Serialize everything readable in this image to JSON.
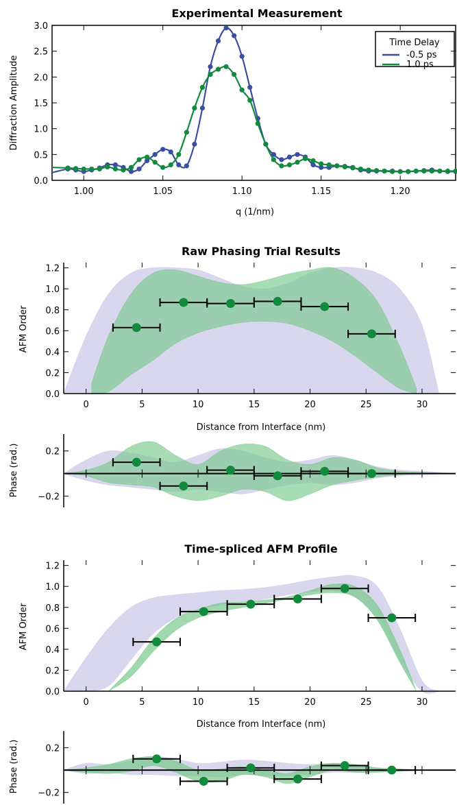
{
  "colors": {
    "blue": "#3b4ea2",
    "green": "#128a3e",
    "green_fill": "#78c98c",
    "green_fill_dark": "#2e8e74",
    "lavender": "#cfcde8",
    "black": "#000000"
  },
  "chart_data": [
    {
      "type": "line",
      "title": "Experimental Measurement",
      "xlabel": "q (1/nm)",
      "ylabel": "Diffraction Amplitude",
      "xlim": [
        0.98,
        1.235
      ],
      "ylim": [
        0,
        3.0
      ],
      "xticks": [
        1.0,
        1.05,
        1.1,
        1.15,
        1.2
      ],
      "xtick_labels": [
        "1.00",
        "1.05",
        "1.10",
        "1.15",
        "1.20"
      ],
      "yticks": [
        0,
        0.5,
        1.0,
        1.5,
        2.0,
        2.5,
        3.0
      ],
      "ytick_labels": [
        "0.0",
        "0.5",
        "1.0",
        "1.5",
        "2.0",
        "2.5",
        "3.0"
      ],
      "legend": {
        "title": "Time Delay",
        "position": "top-right"
      },
      "series": [
        {
          "name": "-0.5 ps",
          "x": [
            0.98,
            0.99,
            0.995,
            1.0,
            1.005,
            1.01,
            1.015,
            1.02,
            1.025,
            1.03,
            1.035,
            1.04,
            1.045,
            1.05,
            1.055,
            1.06,
            1.065,
            1.07,
            1.075,
            1.08,
            1.085,
            1.09,
            1.095,
            1.1,
            1.105,
            1.11,
            1.115,
            1.12,
            1.125,
            1.13,
            1.135,
            1.14,
            1.145,
            1.15,
            1.155,
            1.16,
            1.165,
            1.17,
            1.175,
            1.18,
            1.185,
            1.19,
            1.195,
            1.2,
            1.205,
            1.21,
            1.215,
            1.22,
            1.225,
            1.23,
            1.235
          ],
          "y": [
            0.15,
            0.22,
            0.2,
            0.17,
            0.2,
            0.24,
            0.3,
            0.3,
            0.25,
            0.17,
            0.22,
            0.38,
            0.5,
            0.6,
            0.55,
            0.3,
            0.28,
            0.7,
            1.4,
            2.2,
            2.7,
            2.95,
            2.8,
            2.4,
            1.8,
            1.2,
            0.7,
            0.5,
            0.4,
            0.45,
            0.5,
            0.45,
            0.3,
            0.25,
            0.25,
            0.28,
            0.27,
            0.25,
            0.2,
            0.18,
            0.18,
            0.18,
            0.18,
            0.17,
            0.17,
            0.18,
            0.19,
            0.2,
            0.18,
            0.17,
            0.17
          ]
        },
        {
          "name": "1.0 ps",
          "x": [
            0.98,
            0.99,
            0.995,
            1.0,
            1.005,
            1.01,
            1.015,
            1.02,
            1.025,
            1.03,
            1.035,
            1.04,
            1.045,
            1.05,
            1.055,
            1.06,
            1.065,
            1.07,
            1.075,
            1.08,
            1.085,
            1.09,
            1.095,
            1.1,
            1.105,
            1.11,
            1.115,
            1.12,
            1.125,
            1.13,
            1.135,
            1.14,
            1.145,
            1.15,
            1.155,
            1.16,
            1.165,
            1.17,
            1.175,
            1.18,
            1.185,
            1.19,
            1.195,
            1.2,
            1.205,
            1.21,
            1.215,
            1.22,
            1.225,
            1.23,
            1.235
          ],
          "y": [
            0.25,
            0.24,
            0.23,
            0.22,
            0.22,
            0.22,
            0.26,
            0.22,
            0.2,
            0.25,
            0.4,
            0.45,
            0.35,
            0.25,
            0.3,
            0.5,
            0.93,
            1.4,
            1.8,
            2.05,
            2.15,
            2.2,
            2.05,
            1.75,
            1.55,
            1.1,
            0.7,
            0.4,
            0.28,
            0.3,
            0.35,
            0.42,
            0.38,
            0.32,
            0.3,
            0.28,
            0.26,
            0.24,
            0.22,
            0.2,
            0.19,
            0.18,
            0.17,
            0.17,
            0.17,
            0.18,
            0.18,
            0.18,
            0.18,
            0.18,
            0.18
          ]
        }
      ]
    },
    {
      "type": "scatter",
      "title": "Raw Phasing Trial Results",
      "xlabel": "Distance from Interface (nm)",
      "ylabel": "AFM Order",
      "xlim": [
        -2,
        33
      ],
      "ylim": [
        0,
        1.25
      ],
      "xticks": [
        0,
        5,
        10,
        15,
        20,
        25,
        30
      ],
      "xtick_labels": [
        "0",
        "5",
        "10",
        "15",
        "20",
        "25",
        "30"
      ],
      "yticks": [
        0,
        0.2,
        0.4,
        0.6,
        0.8,
        1.0,
        1.2
      ],
      "ytick_labels": [
        "0.0",
        "0.2",
        "0.4",
        "0.6",
        "0.8",
        "1.0",
        "1.2"
      ],
      "points": [
        {
          "x": 4.5,
          "y": 0.63,
          "xerr": 2.1
        },
        {
          "x": 8.7,
          "y": 0.87,
          "xerr": 2.1
        },
        {
          "x": 12.9,
          "y": 0.86,
          "xerr": 2.1
        },
        {
          "x": 17.1,
          "y": 0.88,
          "xerr": 2.1
        },
        {
          "x": 21.3,
          "y": 0.83,
          "xerr": 2.1
        },
        {
          "x": 25.5,
          "y": 0.57,
          "xerr": 2.1
        }
      ],
      "band_green": {
        "x": [
          0.5,
          2,
          4,
          6,
          8,
          10,
          12,
          14,
          16,
          18,
          20,
          22,
          24,
          26,
          28,
          29.5
        ],
        "upper": [
          0.1,
          0.55,
          0.95,
          1.15,
          1.18,
          1.12,
          1.06,
          1.04,
          1.08,
          1.14,
          1.18,
          1.2,
          1.1,
          0.88,
          0.45,
          0.05
        ],
        "lower": [
          0.0,
          0.02,
          0.18,
          0.32,
          0.48,
          0.58,
          0.64,
          0.68,
          0.69,
          0.67,
          0.6,
          0.5,
          0.36,
          0.2,
          0.05,
          0.0
        ]
      },
      "band_lavender": {
        "x": [
          -2,
          0,
          2,
          4,
          6,
          8,
          10,
          12,
          14,
          16,
          18,
          20,
          22,
          24,
          26,
          28,
          30,
          31.5
        ],
        "upper": [
          0.0,
          0.55,
          0.95,
          1.15,
          1.2,
          1.2,
          1.18,
          1.1,
          1.02,
          1.0,
          1.05,
          1.15,
          1.2,
          1.2,
          1.15,
          1.0,
          0.65,
          0.0
        ],
        "lower": [
          0.0,
          0.0,
          0.0,
          0.0,
          0.0,
          0.0,
          0.0,
          0.0,
          0.0,
          0.0,
          0.0,
          0.0,
          0.0,
          0.0,
          0.0,
          0.0,
          0.0,
          0.0
        ]
      }
    },
    {
      "type": "scatter",
      "title": "",
      "xlabel": "",
      "ylabel": "Phase (rad.)",
      "xlim": [
        -2,
        33
      ],
      "ylim": [
        -0.3,
        0.35
      ],
      "yticks": [
        -0.2,
        0.2
      ],
      "ytick_labels": [
        "−0.2",
        "0.2"
      ],
      "xticks": [
        0,
        5,
        10,
        15,
        20,
        25,
        30
      ],
      "points": [
        {
          "x": 4.5,
          "y": 0.1,
          "xerr": 2.1
        },
        {
          "x": 8.7,
          "y": -0.11,
          "xerr": 2.1
        },
        {
          "x": 12.9,
          "y": 0.03,
          "xerr": 2.1
        },
        {
          "x": 17.1,
          "y": -0.02,
          "xerr": 2.1
        },
        {
          "x": 21.3,
          "y": 0.02,
          "xerr": 2.1
        },
        {
          "x": 25.5,
          "y": 0.0,
          "xerr": 2.1
        }
      ],
      "band_green": {
        "x": [
          -2,
          0,
          2,
          4,
          6,
          8,
          10,
          12,
          14,
          16,
          18,
          20,
          22,
          24,
          26,
          28,
          30,
          33
        ],
        "upper": [
          0.0,
          0.03,
          0.1,
          0.24,
          0.28,
          0.16,
          0.08,
          0.2,
          0.26,
          0.24,
          0.12,
          0.08,
          0.14,
          0.12,
          0.05,
          0.02,
          0.01,
          0.0
        ],
        "lower": [
          0.0,
          -0.02,
          -0.08,
          -0.1,
          -0.12,
          -0.2,
          -0.24,
          -0.2,
          -0.14,
          -0.16,
          -0.24,
          -0.18,
          -0.1,
          -0.06,
          -0.03,
          -0.01,
          0.0,
          0.0
        ]
      },
      "band_lavender": {
        "x": [
          -2,
          0,
          2,
          4,
          6,
          8,
          10,
          12,
          14,
          16,
          18,
          20,
          22,
          24,
          26,
          28,
          30,
          33
        ],
        "upper": [
          0.0,
          0.12,
          0.2,
          0.18,
          0.14,
          0.1,
          0.16,
          0.22,
          0.2,
          0.14,
          0.1,
          0.12,
          0.16,
          0.12,
          0.06,
          0.03,
          0.02,
          0.0
        ],
        "lower": [
          0.0,
          -0.06,
          -0.1,
          -0.12,
          -0.14,
          -0.16,
          -0.14,
          -0.16,
          -0.18,
          -0.14,
          -0.1,
          -0.08,
          -0.1,
          -0.08,
          -0.04,
          -0.02,
          -0.01,
          0.0
        ]
      }
    },
    {
      "type": "scatter",
      "title": "Time-spliced AFM Profile",
      "xlabel": "Distance from Interface (nm)",
      "ylabel": "AFM Order",
      "xlim": [
        -2,
        33
      ],
      "ylim": [
        0,
        1.25
      ],
      "xticks": [
        0,
        5,
        10,
        15,
        20,
        25,
        30
      ],
      "xtick_labels": [
        "0",
        "5",
        "10",
        "15",
        "20",
        "25",
        "30"
      ],
      "yticks": [
        0,
        0.2,
        0.4,
        0.6,
        0.8,
        1.0,
        1.2
      ],
      "ytick_labels": [
        "0.0",
        "0.2",
        "0.4",
        "0.6",
        "0.8",
        "1.0",
        "1.2"
      ],
      "points": [
        {
          "x": 6.3,
          "y": 0.47,
          "xerr": 2.1
        },
        {
          "x": 10.5,
          "y": 0.76,
          "xerr": 2.1
        },
        {
          "x": 14.7,
          "y": 0.83,
          "xerr": 2.1
        },
        {
          "x": 18.9,
          "y": 0.88,
          "xerr": 2.1
        },
        {
          "x": 23.1,
          "y": 0.98,
          "xerr": 2.1
        },
        {
          "x": 27.3,
          "y": 0.7,
          "xerr": 2.1
        }
      ],
      "band_green": {
        "x": [
          2.0,
          4,
          6,
          8,
          10,
          12,
          14,
          16,
          18,
          20,
          22,
          24,
          26,
          28,
          29.5
        ],
        "upper": [
          0.0,
          0.22,
          0.5,
          0.69,
          0.78,
          0.84,
          0.85,
          0.87,
          0.9,
          0.96,
          1.02,
          1.0,
          0.82,
          0.4,
          0.0
        ],
        "lower": [
          0.0,
          0.14,
          0.38,
          0.58,
          0.7,
          0.76,
          0.8,
          0.84,
          0.88,
          0.92,
          0.94,
          0.9,
          0.68,
          0.28,
          0.0
        ]
      },
      "band_lavender": {
        "x": [
          -2,
          0,
          2,
          4,
          6,
          8,
          10,
          12,
          14,
          16,
          18,
          20,
          22,
          24,
          26,
          28,
          30,
          31.5
        ],
        "upper": [
          0.0,
          0.32,
          0.6,
          0.8,
          0.89,
          0.92,
          0.94,
          0.96,
          0.97,
          0.99,
          1.02,
          1.06,
          1.09,
          1.1,
          1.0,
          0.6,
          0.1,
          0.0
        ],
        "lower": [
          0.0,
          0.0,
          0.05,
          0.3,
          0.55,
          0.7,
          0.78,
          0.82,
          0.85,
          0.88,
          0.92,
          0.95,
          0.96,
          0.9,
          0.7,
          0.3,
          0.0,
          0.0
        ]
      }
    },
    {
      "type": "scatter",
      "title": "",
      "xlabel": "",
      "ylabel": "Phase (rad.)",
      "xlim": [
        -2,
        33
      ],
      "ylim": [
        -0.3,
        0.35
      ],
      "yticks": [
        -0.2,
        0.2
      ],
      "ytick_labels": [
        "−0.2",
        "0.2"
      ],
      "xticks": [
        0,
        5,
        10,
        15,
        20,
        25,
        30
      ],
      "points": [
        {
          "x": 6.3,
          "y": 0.1,
          "xerr": 2.1
        },
        {
          "x": 10.5,
          "y": -0.1,
          "xerr": 2.1
        },
        {
          "x": 14.7,
          "y": 0.02,
          "xerr": 2.1
        },
        {
          "x": 18.9,
          "y": -0.08,
          "xerr": 2.1
        },
        {
          "x": 23.1,
          "y": 0.04,
          "xerr": 2.1
        },
        {
          "x": 27.3,
          "y": 0.0,
          "xerr": 2.1
        }
      ],
      "band_green": {
        "x": [
          -2,
          0,
          2,
          4,
          6,
          8,
          10,
          12,
          14,
          16,
          18,
          20,
          22,
          24,
          26,
          28,
          30,
          33
        ],
        "upper": [
          0.0,
          0.02,
          0.05,
          0.1,
          0.12,
          0.08,
          0.0,
          0.01,
          0.03,
          0.0,
          -0.03,
          0.03,
          0.06,
          0.05,
          0.02,
          0.01,
          0.0,
          0.0
        ],
        "lower": [
          0.0,
          -0.02,
          -0.03,
          -0.01,
          0.04,
          -0.02,
          -0.1,
          -0.1,
          -0.04,
          -0.06,
          -0.12,
          -0.06,
          0.0,
          -0.02,
          -0.02,
          -0.01,
          0.0,
          0.0
        ]
      },
      "band_lavender": {
        "x": [
          -2,
          0,
          2,
          4,
          6,
          8,
          10,
          12,
          14,
          16,
          18,
          20,
          22,
          24,
          26,
          28,
          30,
          33
        ],
        "upper": [
          0.0,
          0.06,
          0.05,
          0.08,
          0.12,
          0.1,
          0.06,
          0.07,
          0.09,
          0.08,
          0.06,
          0.05,
          0.06,
          0.04,
          0.02,
          0.01,
          0.0,
          0.0
        ],
        "lower": [
          0.0,
          -0.03,
          -0.02,
          -0.04,
          -0.04,
          -0.05,
          -0.05,
          -0.06,
          -0.04,
          -0.05,
          -0.05,
          -0.04,
          -0.02,
          -0.02,
          -0.01,
          0.0,
          0.0,
          0.0
        ]
      }
    }
  ]
}
